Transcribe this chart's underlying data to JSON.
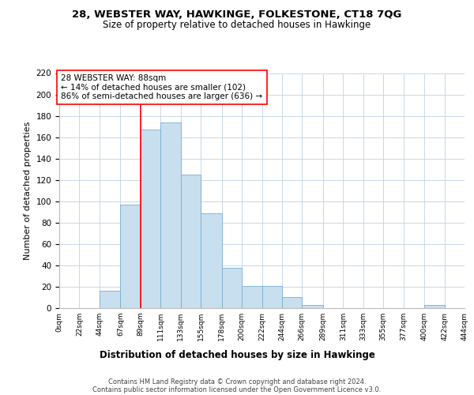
{
  "title1": "28, WEBSTER WAY, HAWKINGE, FOLKESTONE, CT18 7QG",
  "title2": "Size of property relative to detached houses in Hawkinge",
  "xlabel": "Distribution of detached houses by size in Hawkinge",
  "ylabel": "Number of detached properties",
  "bin_edges": [
    0,
    22,
    44,
    67,
    89,
    111,
    133,
    155,
    178,
    200,
    222,
    244,
    266,
    289,
    311,
    333,
    355,
    377,
    400,
    422,
    444
  ],
  "bin_labels": [
    "0sqm",
    "22sqm",
    "44sqm",
    "67sqm",
    "89sqm",
    "111sqm",
    "133sqm",
    "155sqm",
    "178sqm",
    "200sqm",
    "222sqm",
    "244sqm",
    "266sqm",
    "289sqm",
    "311sqm",
    "333sqm",
    "355sqm",
    "377sqm",
    "400sqm",
    "422sqm",
    "444sqm"
  ],
  "counts": [
    0,
    0,
    16,
    97,
    167,
    174,
    125,
    89,
    38,
    21,
    21,
    10,
    3,
    0,
    0,
    0,
    0,
    0,
    3,
    0
  ],
  "bar_color": "#c8dff0",
  "bar_edge_color": "#7aaed0",
  "property_line_x": 89,
  "annotation_line1": "28 WEBSTER WAY: 88sqm",
  "annotation_line2": "← 14% of detached houses are smaller (102)",
  "annotation_line3": "86% of semi-detached houses are larger (636) →",
  "ylim": [
    0,
    220
  ],
  "yticks": [
    0,
    20,
    40,
    60,
    80,
    100,
    120,
    140,
    160,
    180,
    200,
    220
  ],
  "footer_line1": "Contains HM Land Registry data © Crown copyright and database right 2024.",
  "footer_line2": "Contains public sector information licensed under the Open Government Licence v3.0.",
  "background_color": "#ffffff",
  "grid_color": "#c8d8e8"
}
